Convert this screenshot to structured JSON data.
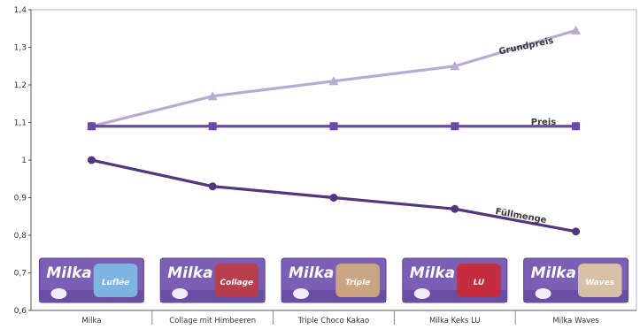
{
  "chart_data": {
    "type": "line",
    "categories": [
      "Milka",
      "Collage mit Himbeeren",
      "Triple Choco Kakao",
      "Milka Keks LU",
      "Milka Waves"
    ],
    "ylim": [
      0.6,
      1.4
    ],
    "yticks": [
      "0,6",
      "0,7",
      "0,8",
      "0,9",
      "1",
      "1,1",
      "1,2",
      "1,3",
      "1,4"
    ],
    "grid": false,
    "legend": "none",
    "series": [
      {
        "name": "Grundpreis",
        "values": [
          1.09,
          1.17,
          1.21,
          1.25,
          1.345
        ],
        "color": "#b9aad4",
        "marker": "triangle"
      },
      {
        "name": "Preis",
        "values": [
          1.09,
          1.09,
          1.09,
          1.09,
          1.09
        ],
        "color": "#6a4aa6",
        "marker": "square"
      },
      {
        "name": "Füllmenge",
        "values": [
          1.0,
          0.93,
          0.9,
          0.87,
          0.81
        ],
        "color": "#54367f",
        "marker": "circle"
      }
    ],
    "products": [
      {
        "brand": "Milka",
        "flavor": "Luflée"
      },
      {
        "brand": "Milka",
        "flavor": "Collage"
      },
      {
        "brand": "Milka",
        "flavor": "Triple"
      },
      {
        "brand": "Milka",
        "flavor": "LU"
      },
      {
        "brand": "Milka",
        "flavor": "Waves"
      }
    ]
  }
}
